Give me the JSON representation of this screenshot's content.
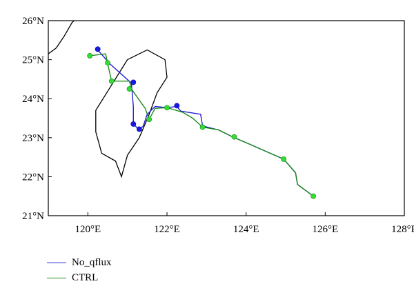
{
  "chart_data": {
    "type": "map-track",
    "x_ticks": [
      {
        "value": 120,
        "label": "120°E"
      },
      {
        "value": 122,
        "label": "122°E"
      },
      {
        "value": 124,
        "label": "124°E"
      },
      {
        "value": 126,
        "label": "126°E"
      },
      {
        "value": 128,
        "label": "128°E"
      }
    ],
    "y_ticks": [
      {
        "value": 21,
        "label": "21°N"
      },
      {
        "value": 22,
        "label": "22°N"
      },
      {
        "value": 23,
        "label": "23°N"
      },
      {
        "value": 24,
        "label": "24°N"
      },
      {
        "value": 25,
        "label": "25°N"
      },
      {
        "value": 26,
        "label": "26°N"
      }
    ],
    "xlim": [
      119,
      128
    ],
    "ylim": [
      21,
      26
    ],
    "coastlines": [
      {
        "name": "taiwan",
        "points": [
          [
            120.85,
            22.0
          ],
          [
            121.0,
            22.55
          ],
          [
            121.3,
            23.0
          ],
          [
            121.55,
            23.6
          ],
          [
            121.75,
            24.15
          ],
          [
            122.0,
            24.55
          ],
          [
            121.95,
            25.0
          ],
          [
            121.5,
            25.25
          ],
          [
            121.0,
            25.0
          ],
          [
            120.6,
            24.35
          ],
          [
            120.2,
            23.7
          ],
          [
            120.2,
            23.15
          ],
          [
            120.35,
            22.6
          ],
          [
            120.7,
            22.4
          ]
        ]
      },
      {
        "name": "mainland",
        "points": [
          [
            119.0,
            25.15
          ],
          [
            119.2,
            25.3
          ],
          [
            119.4,
            25.6
          ],
          [
            119.6,
            25.95
          ],
          [
            119.65,
            26.0
          ]
        ]
      }
    ],
    "series": [
      {
        "name": "No_qflux",
        "color": "#1f1fd6",
        "line": [
          [
            125.7,
            21.5
          ],
          [
            125.5,
            21.65
          ],
          [
            125.3,
            21.8
          ],
          [
            125.25,
            22.1
          ],
          [
            124.95,
            22.45
          ],
          [
            124.5,
            22.65
          ],
          [
            124.05,
            22.85
          ],
          [
            123.7,
            23.0
          ],
          [
            123.3,
            23.2
          ],
          [
            122.9,
            23.3
          ],
          [
            122.85,
            23.6
          ],
          [
            122.55,
            23.65
          ],
          [
            122.35,
            23.68
          ],
          [
            122.25,
            23.8
          ],
          [
            122.0,
            23.77
          ],
          [
            121.7,
            23.8
          ],
          [
            121.6,
            23.7
          ],
          [
            121.5,
            23.6
          ],
          [
            121.4,
            23.3
          ],
          [
            121.3,
            23.2
          ],
          [
            121.15,
            23.35
          ],
          [
            121.15,
            23.8
          ],
          [
            121.1,
            24.4
          ],
          [
            120.55,
            24.9
          ],
          [
            120.25,
            25.25
          ]
        ],
        "markers": [
          [
            120.25,
            25.27
          ],
          [
            121.15,
            24.42
          ],
          [
            121.15,
            23.35
          ],
          [
            121.3,
            23.22
          ],
          [
            122.25,
            23.82
          ]
        ]
      },
      {
        "name": "CTRL",
        "color": "#1a8a1a",
        "line": [
          [
            125.7,
            21.5
          ],
          [
            125.5,
            21.65
          ],
          [
            125.3,
            21.8
          ],
          [
            125.25,
            22.1
          ],
          [
            124.95,
            22.45
          ],
          [
            124.5,
            22.65
          ],
          [
            124.05,
            22.85
          ],
          [
            123.7,
            23.0
          ],
          [
            123.3,
            23.2
          ],
          [
            122.9,
            23.27
          ],
          [
            122.65,
            23.5
          ],
          [
            122.4,
            23.65
          ],
          [
            122.0,
            23.77
          ],
          [
            121.7,
            23.75
          ],
          [
            121.55,
            23.47
          ],
          [
            121.45,
            23.75
          ],
          [
            121.1,
            24.25
          ],
          [
            121.05,
            24.45
          ],
          [
            120.6,
            24.45
          ],
          [
            120.5,
            24.9
          ],
          [
            120.45,
            25.15
          ],
          [
            120.05,
            25.1
          ]
        ],
        "markers": [
          [
            120.05,
            25.1
          ],
          [
            120.5,
            24.92
          ],
          [
            120.6,
            24.45
          ],
          [
            121.05,
            24.25
          ],
          [
            121.55,
            23.47
          ],
          [
            122.0,
            23.77
          ],
          [
            122.9,
            23.27
          ],
          [
            123.7,
            23.02
          ],
          [
            124.95,
            22.45
          ],
          [
            125.7,
            21.5
          ]
        ]
      }
    ],
    "legend": [
      {
        "label": "No_qflux",
        "color": "#1f1fd6"
      },
      {
        "label": "CTRL",
        "color": "#1a8a1a"
      }
    ],
    "marker_fill": {
      "No_qflux": "#1a1ae6",
      "CTRL": "#33dd33"
    }
  }
}
